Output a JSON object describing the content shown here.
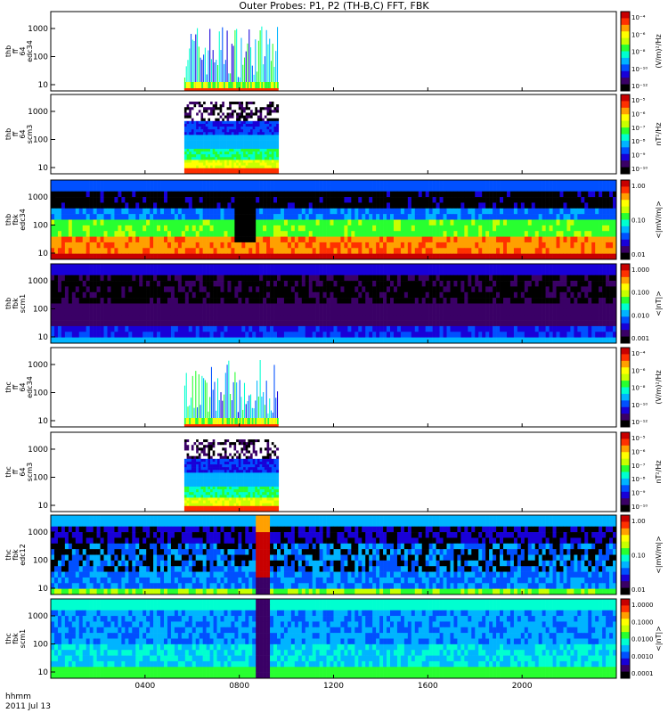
{
  "title": "Outer Probes: P1, P2 (TH-B,C) FFT, FBK",
  "footer": {
    "line1": "hhmm",
    "line2": "2011 Jul 13"
  },
  "x_ticks": [
    "0400",
    "0800",
    "1200",
    "1600",
    "2000"
  ],
  "colors": {
    "rainbow": [
      "#000000",
      "#3a0066",
      "#1800d8",
      "#0050ff",
      "#00b4ff",
      "#00ffd0",
      "#28ff30",
      "#c8ff00",
      "#ffff00",
      "#ffa000",
      "#ff3000",
      "#c80000"
    ]
  },
  "chart_data": [
    {
      "type": "heatmap",
      "ylabel": [
        "thb",
        "ff",
        "64",
        "edc34"
      ],
      "y_ticks": [
        "1000",
        "100",
        "10"
      ],
      "colorbar": {
        "label": "(V/m)²/Hz",
        "ticks": [
          "10⁻⁴",
          "10⁻⁶",
          "10⁻⁸",
          "10⁻¹⁰",
          "10⁻¹²"
        ]
      },
      "x_range_hhmm": [
        "0540",
        "0940"
      ],
      "pattern": "sparse_spikes"
    },
    {
      "type": "heatmap",
      "ylabel": [
        "thb",
        "ff",
        "64",
        "scm3"
      ],
      "y_ticks": [
        "1000",
        "100",
        "10"
      ],
      "colorbar": {
        "label": "nT²/Hz",
        "ticks": [
          "10⁻⁵",
          "10⁻⁶",
          "10⁻⁷",
          "10⁻⁸",
          "10⁻⁹",
          "10⁻¹⁰"
        ]
      },
      "x_range_hhmm": [
        "0540",
        "0940"
      ],
      "pattern": "bands_dense"
    },
    {
      "type": "heatmap",
      "ylabel": [
        "thb",
        "fbk",
        "edc34"
      ],
      "y_ticks": [
        "1000",
        "100",
        "10"
      ],
      "colorbar": {
        "label": "<|mV/m|>",
        "ticks": [
          "1.00",
          "0.10",
          "0.01"
        ]
      },
      "x_range_hhmm": [
        "0000",
        "2400"
      ],
      "pattern": "fbk_e_thb"
    },
    {
      "type": "heatmap",
      "ylabel": [
        "thb",
        "fbk",
        "scm1"
      ],
      "y_ticks": [
        "1000",
        "100",
        "10"
      ],
      "colorbar": {
        "label": "<|nT|>",
        "ticks": [
          "1.000",
          "0.100",
          "0.010",
          "0.001"
        ]
      },
      "x_range_hhmm": [
        "0000",
        "2400"
      ],
      "pattern": "fbk_b_thb"
    },
    {
      "type": "heatmap",
      "ylabel": [
        "thc",
        "ff",
        "64",
        "edc34"
      ],
      "y_ticks": [
        "1000",
        "100",
        "10"
      ],
      "colorbar": {
        "label": "(V/m)²/Hz",
        "ticks": [
          "10⁻⁴",
          "10⁻⁶",
          "10⁻⁸",
          "10⁻¹⁰",
          "10⁻¹²"
        ]
      },
      "x_range_hhmm": [
        "0540",
        "0940"
      ],
      "pattern": "sparse_spikes"
    },
    {
      "type": "heatmap",
      "ylabel": [
        "thc",
        "ff",
        "64",
        "scm3"
      ],
      "y_ticks": [
        "1000",
        "100",
        "10"
      ],
      "colorbar": {
        "label": "nT²/Hz",
        "ticks": [
          "10⁻⁵",
          "10⁻⁶",
          "10⁻⁷",
          "10⁻⁸",
          "10⁻⁹",
          "10⁻¹⁰"
        ]
      },
      "x_range_hhmm": [
        "0540",
        "0940"
      ],
      "pattern": "bands_dense"
    },
    {
      "type": "heatmap",
      "ylabel": [
        "thc",
        "fbk",
        "edc12"
      ],
      "y_ticks": [
        "1000",
        "100",
        "10"
      ],
      "colorbar": {
        "label": "<|mV/m|>",
        "ticks": [
          "1.00",
          "0.10",
          "0.01"
        ]
      },
      "x_range_hhmm": [
        "0000",
        "2400"
      ],
      "pattern": "fbk_e_thc"
    },
    {
      "type": "heatmap",
      "ylabel": [
        "thc",
        "fbk",
        "scm1"
      ],
      "y_ticks": [
        "1000",
        "100",
        "10"
      ],
      "colorbar": {
        "label": "<|nT|>",
        "ticks": [
          "1.0000",
          "0.1000",
          "0.0100",
          "0.0010",
          "0.0001"
        ]
      },
      "x_range_hhmm": [
        "0000",
        "2400"
      ],
      "pattern": "fbk_b_thc"
    }
  ]
}
